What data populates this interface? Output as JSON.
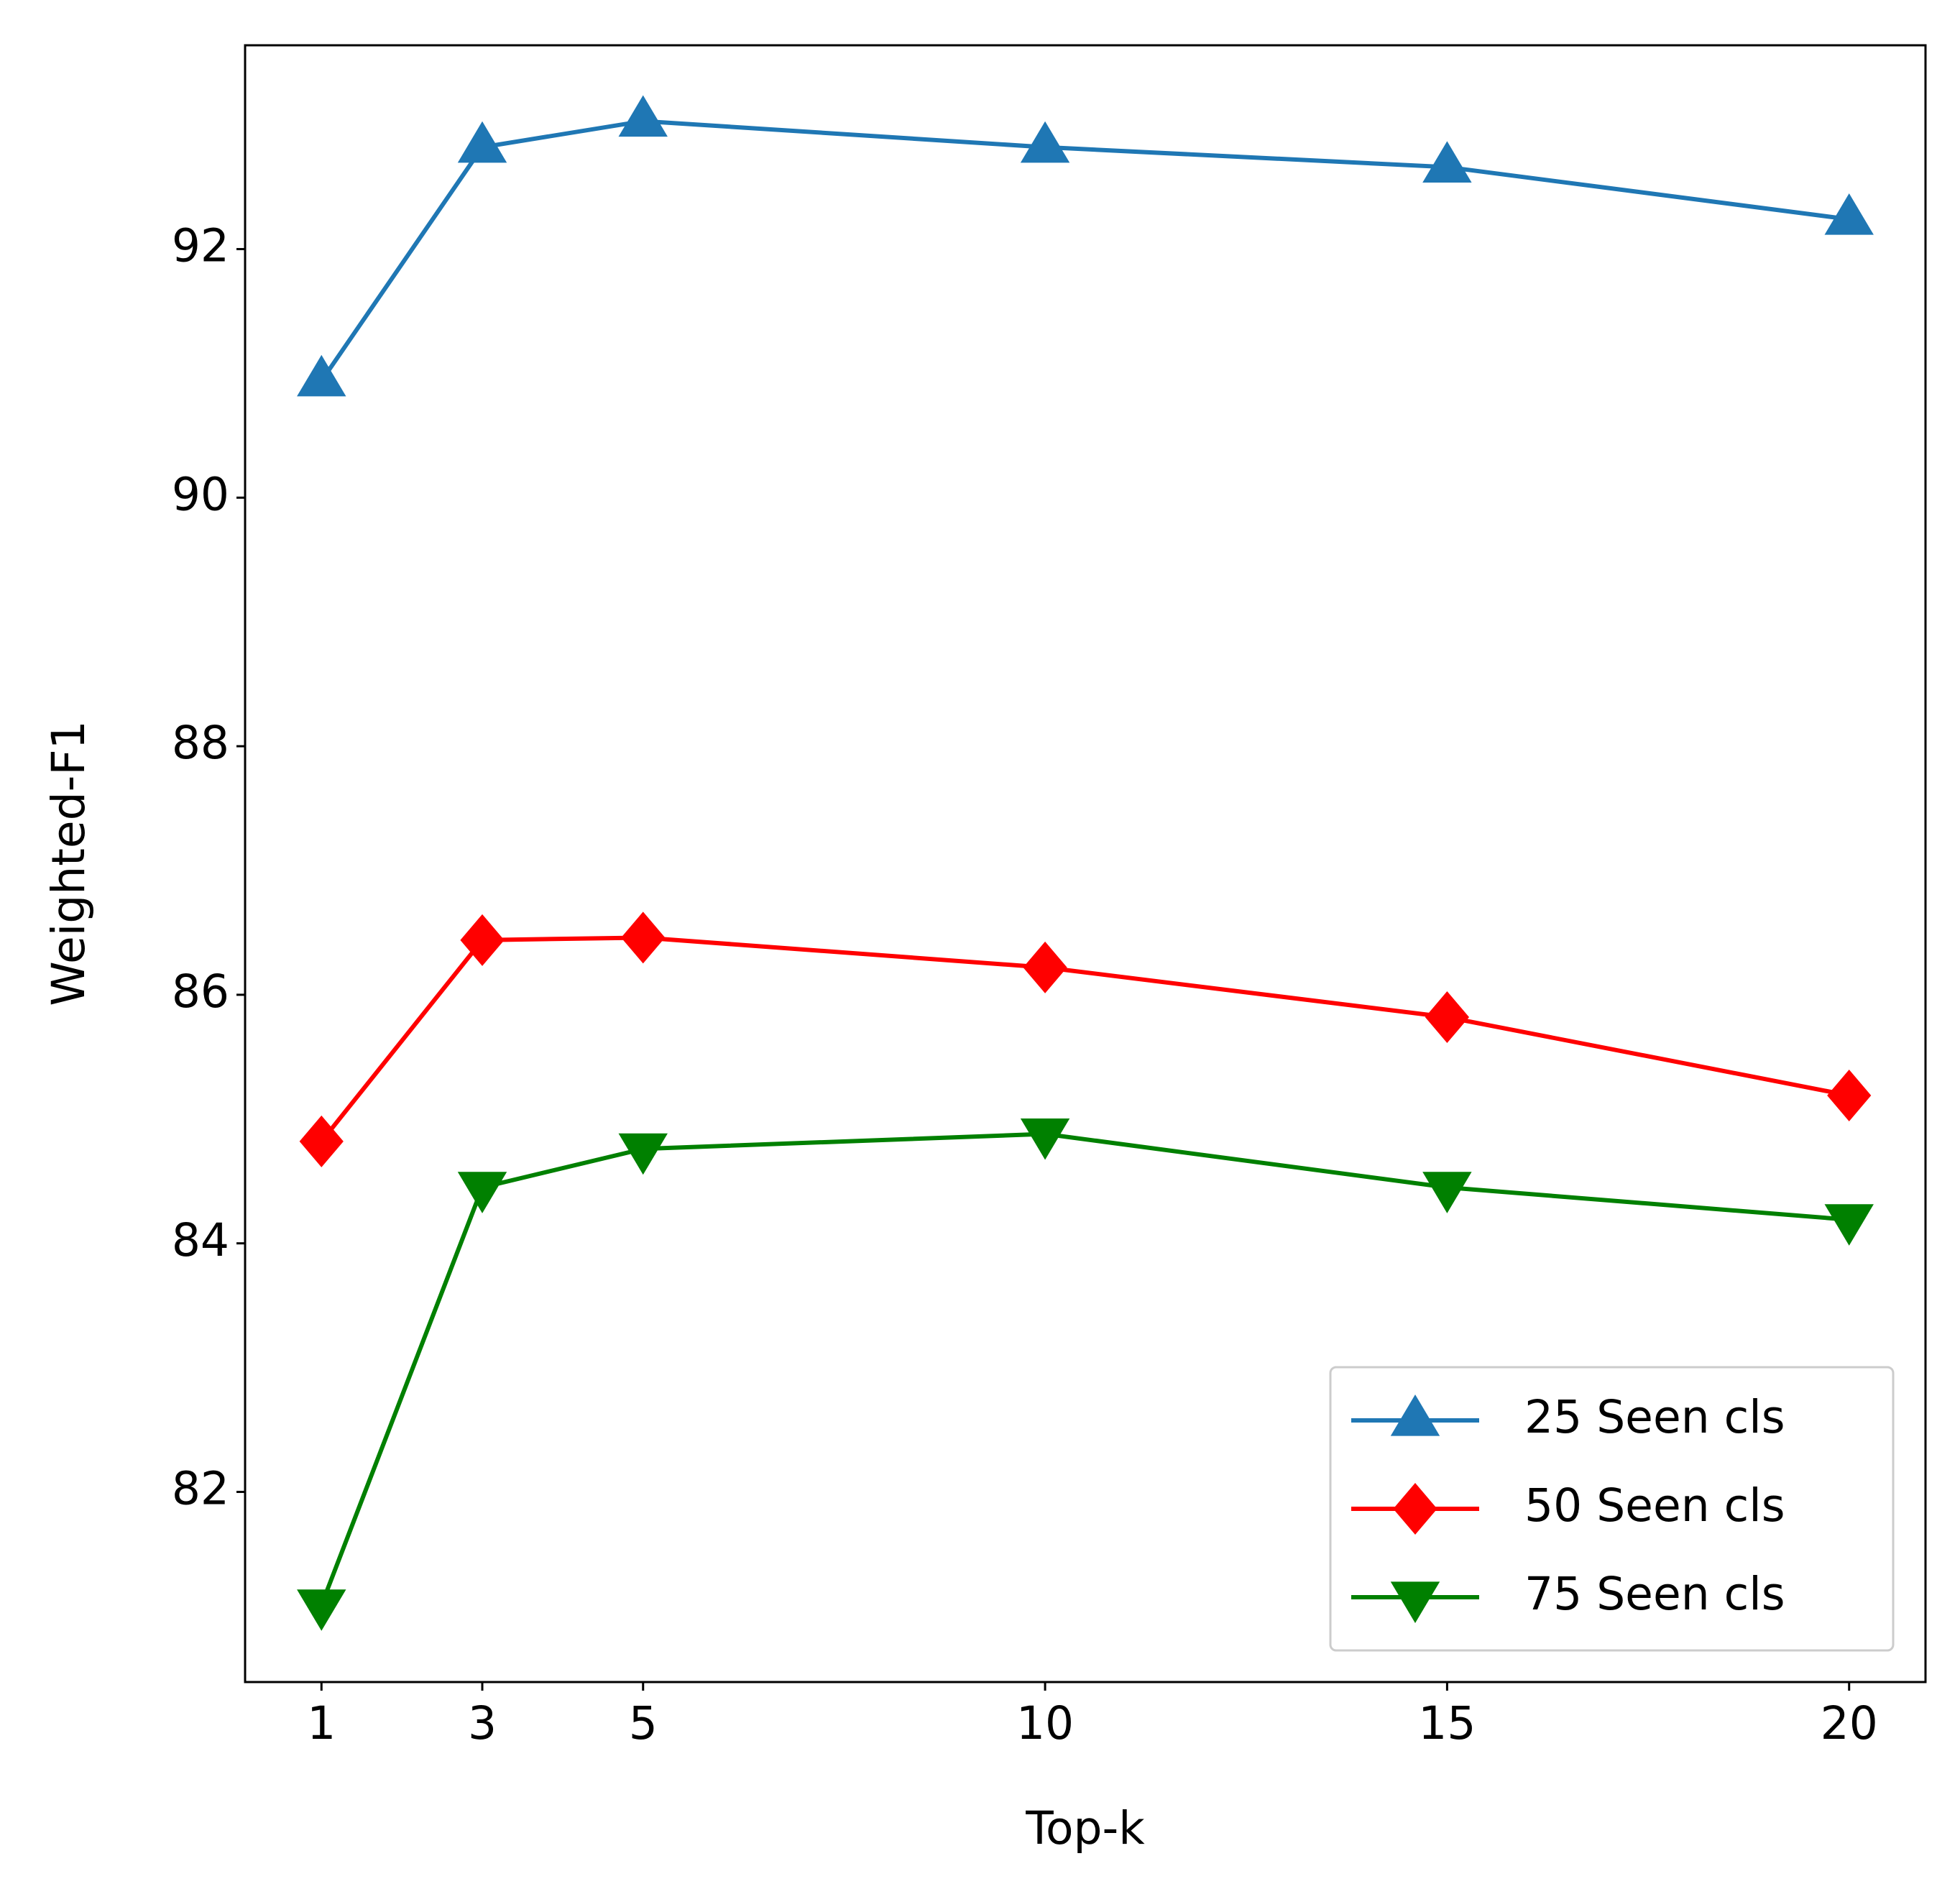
{
  "chart_data": {
    "type": "line",
    "xlabel": "Top-k",
    "ylabel": "Weighted-F1",
    "x": [
      1,
      3,
      5,
      10,
      15,
      20
    ],
    "series": [
      {
        "name": "25 Seen cls",
        "color": "#1f77b4",
        "marker": "triangle-up",
        "values": [
          90.94,
          92.82,
          93.03,
          92.82,
          92.66,
          92.24
        ]
      },
      {
        "name": "50 Seen cls",
        "color": "#ff0000",
        "marker": "diamond",
        "values": [
          84.82,
          86.44,
          86.46,
          86.22,
          85.82,
          85.19
        ]
      },
      {
        "name": "75 Seen cls",
        "color": "#008000",
        "marker": "triangle-down",
        "values": [
          81.09,
          84.45,
          84.76,
          84.88,
          84.45,
          84.19
        ]
      }
    ],
    "xlim": [
      0.05,
      20.95
    ],
    "ylim": [
      80.47,
      93.64
    ],
    "xticks": [
      1,
      3,
      5,
      10,
      15,
      20
    ],
    "yticks": [
      82,
      84,
      86,
      88,
      90,
      92
    ],
    "grid": false,
    "legend": "lower right"
  }
}
